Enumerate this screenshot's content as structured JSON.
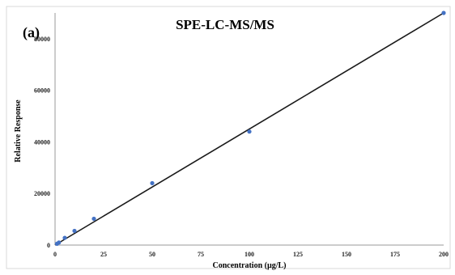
{
  "chart_data": {
    "type": "scatter",
    "panel_label": "(a)",
    "title": "SPE-LC-MS/MS",
    "xlabel": "Concentration (µg/L)",
    "ylabel": "Relative Response",
    "xlim": [
      0,
      200
    ],
    "ylim": [
      0,
      90000
    ],
    "xticks": [
      "0",
      "25",
      "50",
      "75",
      "100",
      "125",
      "150",
      "175",
      "200"
    ],
    "yticks": [
      "0",
      "20000",
      "40000",
      "60000",
      "80000"
    ],
    "grid": false,
    "series": [
      {
        "x": [
          1,
          2,
          5,
          10,
          20,
          50,
          100,
          200
        ],
        "y": [
          500,
          1000,
          2800,
          5500,
          10200,
          24000,
          44000,
          90000
        ],
        "color": "#4472c4",
        "trendline": {
          "type": "linear",
          "from": [
            0,
            0
          ],
          "to": [
            200,
            90000
          ],
          "color": "#1a1a1a"
        }
      }
    ]
  }
}
